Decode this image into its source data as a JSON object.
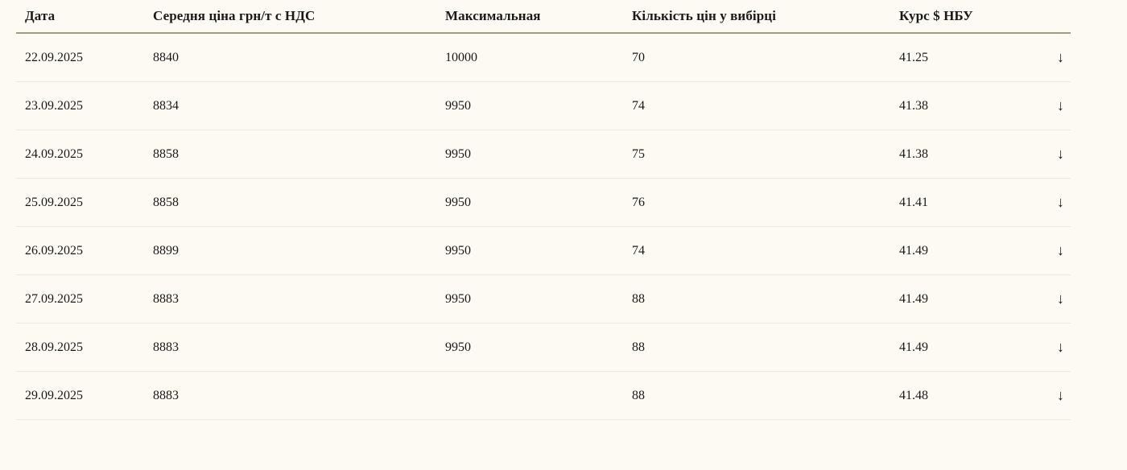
{
  "table": {
    "columns": [
      {
        "label": "Дата"
      },
      {
        "label": "Середня ціна грн/т с НДС"
      },
      {
        "label": "Максимальная"
      },
      {
        "label": "Кількість цін у вибірці"
      },
      {
        "label": "Курс $ НБУ"
      },
      {
        "label": ""
      }
    ],
    "rows": [
      {
        "date": "22.09.2025",
        "avg_price": "8840",
        "max_price": "10000",
        "sample_count": "70",
        "usd_rate": "41.25",
        "arrow_icon": "↓"
      },
      {
        "date": "23.09.2025",
        "avg_price": "8834",
        "max_price": "9950",
        "sample_count": "74",
        "usd_rate": "41.38",
        "arrow_icon": "↓"
      },
      {
        "date": "24.09.2025",
        "avg_price": "8858",
        "max_price": "9950",
        "sample_count": "75",
        "usd_rate": "41.38",
        "arrow_icon": "↓"
      },
      {
        "date": "25.09.2025",
        "avg_price": "8858",
        "max_price": "9950",
        "sample_count": "76",
        "usd_rate": "41.41",
        "arrow_icon": "↓"
      },
      {
        "date": "26.09.2025",
        "avg_price": "8899",
        "max_price": "9950",
        "sample_count": "74",
        "usd_rate": "41.49",
        "arrow_icon": "↓"
      },
      {
        "date": "27.09.2025",
        "avg_price": "8883",
        "max_price": "9950",
        "sample_count": "88",
        "usd_rate": "41.49",
        "arrow_icon": "↓"
      },
      {
        "date": "28.09.2025",
        "avg_price": "8883",
        "max_price": "9950",
        "sample_count": "88",
        "usd_rate": "41.49",
        "arrow_icon": "↓"
      },
      {
        "date": "29.09.2025",
        "avg_price": "8883",
        "max_price": "",
        "sample_count": "88",
        "usd_rate": "41.48",
        "arrow_icon": "↓"
      }
    ]
  },
  "colors": {
    "background": "#fdf9f3",
    "header_rule": "#9c9d86",
    "row_rule": "#eae7df",
    "text": "#1a1a1a",
    "arrow": "#14141f"
  }
}
